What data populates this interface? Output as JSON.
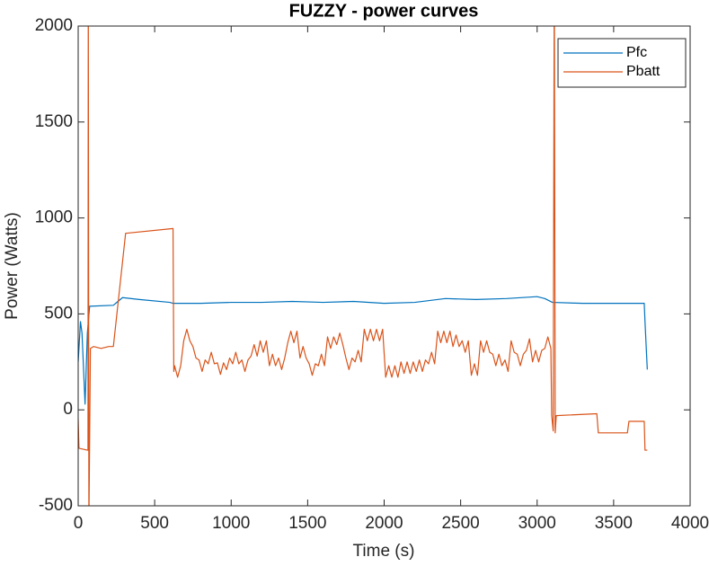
{
  "chart_data": {
    "type": "line",
    "title": "FUZZY - power curves",
    "x_label": "Time (s)",
    "y_label": "Power (Watts)",
    "xlim": [
      0,
      4000
    ],
    "xticks": [
      0,
      500,
      1000,
      1500,
      2000,
      2500,
      3000,
      3500,
      4000
    ],
    "ylim": [
      -500,
      2000
    ],
    "yticks": [
      -500,
      0,
      500,
      1000,
      1500,
      2000
    ],
    "legend": "northeast",
    "grid": false,
    "series": [
      {
        "name": "Pfc",
        "color": "#0072BD",
        "x": [
          0,
          15,
          25,
          45,
          60,
          75,
          230,
          290,
          400,
          600,
          620,
          800,
          1000,
          1200,
          1400,
          1600,
          1800,
          2000,
          2200,
          2400,
          2600,
          2800,
          3000,
          3050,
          3100,
          3300,
          3500,
          3700,
          3705,
          3720
        ],
        "values": [
          250,
          460,
          400,
          30,
          400,
          540,
          545,
          585,
          575,
          560,
          555,
          555,
          560,
          560,
          565,
          560,
          565,
          555,
          560,
          580,
          575,
          580,
          590,
          580,
          560,
          555,
          555,
          555,
          460,
          210
        ]
      },
      {
        "name": "Pbatt",
        "color": "#D95319",
        "x": [
          0,
          5,
          60,
          64,
          66,
          70,
          80,
          100,
          150,
          200,
          230,
          310,
          620,
          625,
          630,
          650,
          670,
          690,
          710,
          730,
          750,
          770,
          790,
          810,
          830,
          850,
          870,
          890,
          910,
          930,
          950,
          970,
          990,
          1010,
          1030,
          1050,
          1070,
          1090,
          1110,
          1130,
          1150,
          1170,
          1190,
          1210,
          1230,
          1250,
          1270,
          1290,
          1310,
          1330,
          1350,
          1370,
          1390,
          1410,
          1430,
          1450,
          1470,
          1490,
          1510,
          1530,
          1550,
          1570,
          1590,
          1610,
          1630,
          1650,
          1670,
          1690,
          1710,
          1730,
          1750,
          1770,
          1790,
          1810,
          1830,
          1850,
          1870,
          1890,
          1910,
          1930,
          1950,
          1970,
          1990,
          2010,
          2030,
          2050,
          2070,
          2090,
          2110,
          2130,
          2150,
          2170,
          2190,
          2210,
          2230,
          2250,
          2270,
          2290,
          2310,
          2330,
          2350,
          2370,
          2390,
          2410,
          2430,
          2450,
          2470,
          2490,
          2510,
          2530,
          2550,
          2570,
          2590,
          2610,
          2630,
          2650,
          2670,
          2690,
          2710,
          2730,
          2750,
          2770,
          2790,
          2810,
          2830,
          2850,
          2870,
          2890,
          2910,
          2930,
          2950,
          2970,
          2990,
          3010,
          3030,
          3050,
          3070,
          3090,
          3095,
          3105,
          3112,
          3118,
          3125,
          3390,
          3400,
          3590,
          3600,
          3700,
          3705,
          3720
        ],
        "values": [
          -50,
          -200,
          -210,
          -210,
          2300,
          -600,
          320,
          330,
          320,
          330,
          330,
          920,
          945,
          200,
          230,
          170,
          230,
          360,
          420,
          360,
          330,
          270,
          260,
          200,
          260,
          240,
          300,
          240,
          245,
          185,
          245,
          210,
          270,
          240,
          300,
          240,
          260,
          200,
          260,
          280,
          340,
          280,
          360,
          300,
          360,
          230,
          290,
          230,
          270,
          210,
          270,
          350,
          410,
          350,
          410,
          270,
          330,
          270,
          240,
          180,
          240,
          230,
          290,
          230,
          380,
          320,
          380,
          340,
          400,
          340,
          270,
          210,
          270,
          250,
          310,
          250,
          420,
          360,
          420,
          360,
          420,
          360,
          420,
          170,
          230,
          170,
          230,
          170,
          250,
          190,
          250,
          190,
          250,
          200,
          260,
          200,
          260,
          240,
          300,
          240,
          410,
          350,
          410,
          350,
          410,
          330,
          390,
          330,
          360,
          300,
          360,
          180,
          240,
          180,
          360,
          300,
          360,
          300,
          290,
          230,
          290,
          230,
          260,
          200,
          360,
          300,
          290,
          230,
          290,
          310,
          370,
          250,
          310,
          250,
          310,
          320,
          380,
          320,
          -30,
          -110,
          2300,
          -120,
          -30,
          -20,
          -120,
          -120,
          -60,
          -60,
          -210,
          -210
        ]
      }
    ]
  }
}
